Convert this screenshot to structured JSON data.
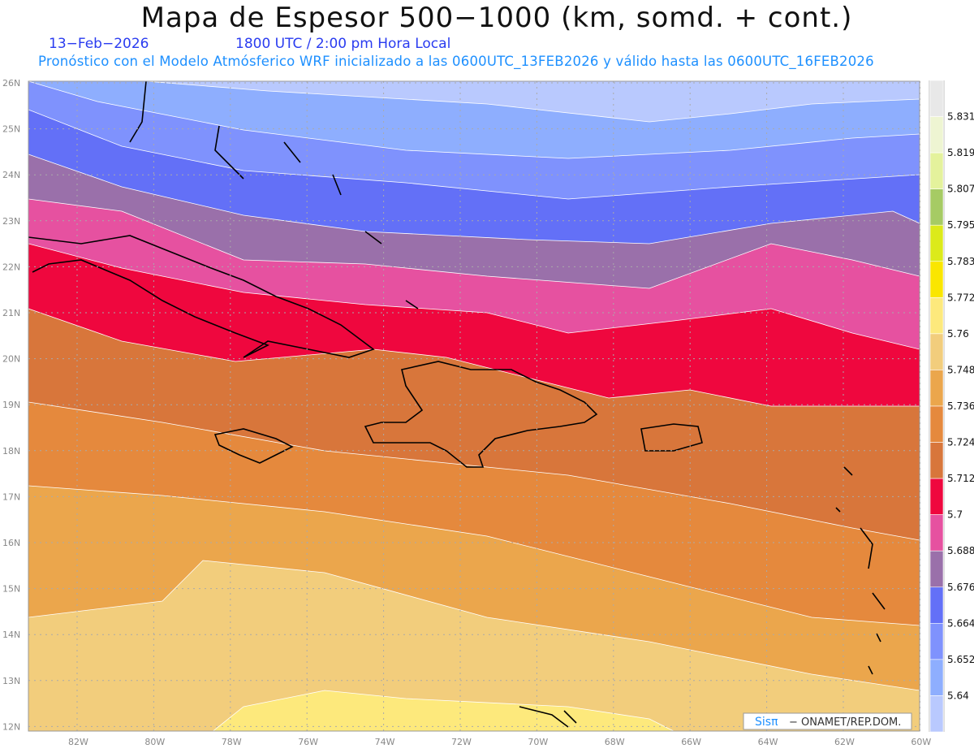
{
  "title": "Mapa de Espesor 500−1000 (km, somd. + cont.)",
  "date": "13−Feb−2026",
  "time": "1800 UTC / 2:00 pm Hora Local",
  "subtitle": "Pronóstico con el Modelo Atmósferico WRF inicializado a las 0600UTC_13FEB2026 y válido hasta las  0600UTC_16FEB2026",
  "lat_labels": [
    "26N",
    "25N",
    "24N",
    "23N",
    "22N",
    "21N",
    "20N",
    "19N",
    "18N",
    "17N",
    "16N",
    "15N",
    "14N",
    "13N",
    "12N"
  ],
  "lon_labels": [
    "82W",
    "80W",
    "78W",
    "76W",
    "74W",
    "72W",
    "70W",
    "68W",
    "66W",
    "64W",
    "62W",
    "60W"
  ],
  "colorbar": {
    "labels": [
      "5.831",
      "5.819",
      "5.807",
      "5.795",
      "5.783",
      "5.772",
      "5.76",
      "5.748",
      "5.736",
      "5.724",
      "5.712",
      "5.7",
      "5.688",
      "5.676",
      "5.664",
      "5.652",
      "5.64"
    ],
    "colors": [
      "#e8e8e8",
      "#eef5d2",
      "#e4f29c",
      "#a6cb64",
      "#dcea1a",
      "#fae600",
      "#fde97c",
      "#f2cd7c",
      "#eba64c",
      "#e5893d",
      "#d8763b",
      "#ef073e",
      "#e651a0",
      "#9a70aa",
      "#6370f7",
      "#7f92fd",
      "#8eaefe",
      "#b9c9fe"
    ]
  },
  "credit": {
    "brand": "Sisπ",
    "text": "−  ONAMET/REP.DOM."
  }
}
